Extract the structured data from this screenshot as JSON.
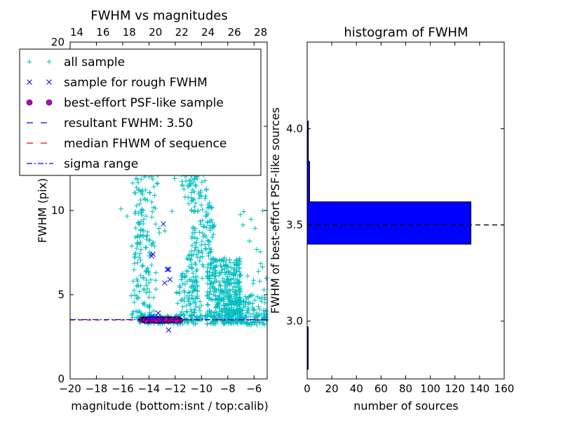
{
  "chart_data": [
    {
      "type": "scatter",
      "title": "FWHM vs magnitudes",
      "xlabel": "magnitude (bottom:isnt / top:calib)",
      "ylabel": "FWHM (pix)",
      "xlim": [
        -20,
        -5
      ],
      "ylim": [
        0,
        20
      ],
      "xticks": [
        -20,
        -18,
        -16,
        -14,
        -12,
        -10,
        -8,
        -6
      ],
      "yticks": [
        0,
        5,
        10,
        15,
        20
      ],
      "top_axis_ticks": [
        14,
        16,
        18,
        20,
        22,
        24,
        26,
        28
      ],
      "top_axis_offset": 33.5,
      "grid": false,
      "legend_position": "top-left",
      "legend": [
        {
          "label": "all sample",
          "marker": "+",
          "color": "#00bfbf"
        },
        {
          "label": "sample for rough FWHM",
          "marker": "x",
          "color": "#0000ff"
        },
        {
          "label": "best-effort PSF-like sample",
          "marker": "o",
          "color": "#bf00bf"
        },
        {
          "label": "resultant FWHM: 3.50",
          "linestyle": "dashed",
          "color": "#0000ff"
        },
        {
          "label": "median FHWM of sequence",
          "linestyle": "dashed",
          "color": "#ff0000"
        },
        {
          "label": "sigma range",
          "linestyle": "dashdot",
          "color": "#0000ff"
        }
      ],
      "series": [
        {
          "name": "sample for rough FWHM",
          "marker": "x",
          "color": "#0000ff",
          "points": [
            [
              -12.9,
              9.2
            ],
            [
              -13.7,
              7.4
            ],
            [
              -13.8,
              7.3
            ],
            [
              -12.6,
              6.5
            ],
            [
              -12.5,
              6.5
            ],
            [
              -12.8,
              5.7
            ],
            [
              -12.4,
              5.9
            ],
            [
              -13.3,
              3.9
            ],
            [
              -13.8,
              3.7
            ],
            [
              -12.5,
              2.9
            ],
            [
              -14.2,
              3.55
            ],
            [
              -13.5,
              3.6
            ],
            [
              -13.0,
              3.45
            ]
          ]
        },
        {
          "name": "best-effort PSF-like sample",
          "marker": "o",
          "color": "#bf00bf",
          "x_range": [
            -14.6,
            -11.6
          ],
          "y": 3.5,
          "count": 133
        },
        {
          "name": "all sample",
          "marker": "+",
          "color": "#00bfbf",
          "note_regions": [
            {
              "x": [
                -14.8,
                -12.6
              ],
              "y": [
                3.2,
                19
              ]
            },
            {
              "x": [
                -11.0,
                -7.6
              ],
              "y": [
                3.3,
                19.5
              ]
            },
            {
              "x": [
                -9.5,
                -5.0
              ],
              "y": [
                3.0,
                7.0
              ]
            }
          ]
        }
      ],
      "reference_lines": [
        {
          "name": "resultant FWHM",
          "y": 3.5,
          "linestyle": "dashed",
          "color": "#0000ff"
        },
        {
          "name": "median",
          "y": 3.5,
          "linestyle": "dashed",
          "color": "#ff0000"
        },
        {
          "name": "sigma range",
          "y": 3.52,
          "linestyle": "dashdot",
          "color": "#0000ff"
        }
      ]
    },
    {
      "type": "bar",
      "orientation": "horizontal",
      "title": "histogram of FWHM",
      "xlabel": "number of sources",
      "ylabel": "FWHM of best-effort PSF-like sources",
      "xlim": [
        0,
        160
      ],
      "ylim": [
        2.7,
        4.45
      ],
      "xticks": [
        0,
        20,
        40,
        60,
        80,
        100,
        120,
        140,
        160
      ],
      "yticks": [
        3.0,
        3.5,
        4.0
      ],
      "bar_color": "#0000ff",
      "bins": [
        {
          "y0": 2.75,
          "y1": 2.97,
          "count": 0.3
        },
        {
          "y0": 3.4,
          "y1": 3.62,
          "count": 133
        },
        {
          "y0": 3.62,
          "y1": 3.83,
          "count": 2
        },
        {
          "y0": 3.83,
          "y1": 4.04,
          "count": 1
        }
      ],
      "reference_line": {
        "y": 3.5,
        "linestyle": "dashed",
        "color": "#000000"
      }
    }
  ]
}
